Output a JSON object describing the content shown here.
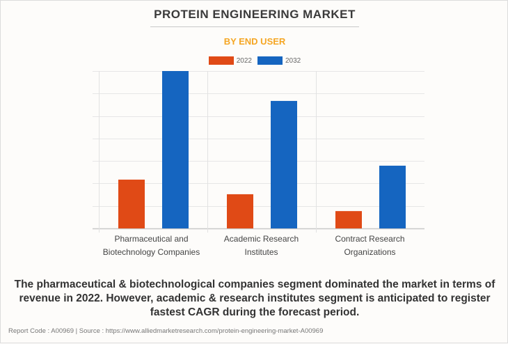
{
  "header": {
    "title": "PROTEIN ENGINEERING MARKET",
    "subtitle": "BY END USER"
  },
  "colors": {
    "series_2022": "#e04a16",
    "series_2032": "#1565c0",
    "subtitle": "#f5a623",
    "grid": "#e6e6e6"
  },
  "chart_data": {
    "type": "bar",
    "title": "PROTEIN ENGINEERING MARKET",
    "subtitle": "BY END USER",
    "categories": [
      [
        "Pharmaceutical and",
        "Biotechnology Companies"
      ],
      [
        "Academic Research",
        "Institutes"
      ],
      [
        "Contract Research",
        "Organizations"
      ]
    ],
    "series": [
      {
        "name": "2022",
        "color": "#e04a16",
        "values": [
          2.17,
          1.52,
          0.77
        ]
      },
      {
        "name": "2032",
        "color": "#1565c0",
        "values": [
          7.0,
          5.67,
          2.79
        ]
      }
    ],
    "xlabel": "",
    "ylabel": "",
    "ylim": [
      0,
      7
    ],
    "y_gridlines": [
      0,
      1,
      2,
      3,
      4,
      5,
      6,
      7
    ],
    "y_tick_labels_shown": false,
    "grid": true,
    "legend": "top-center"
  },
  "caption": "The pharmaceutical & biotechnological companies segment dominated the market in terms of revenue in 2022. However, academic & research institutes segment is anticipated to register fastest CAGR during the forecast period.",
  "footer": "Report Code : A00969  |  Source : https://www.alliedmarketresearch.com/protein-engineering-market-A00969"
}
